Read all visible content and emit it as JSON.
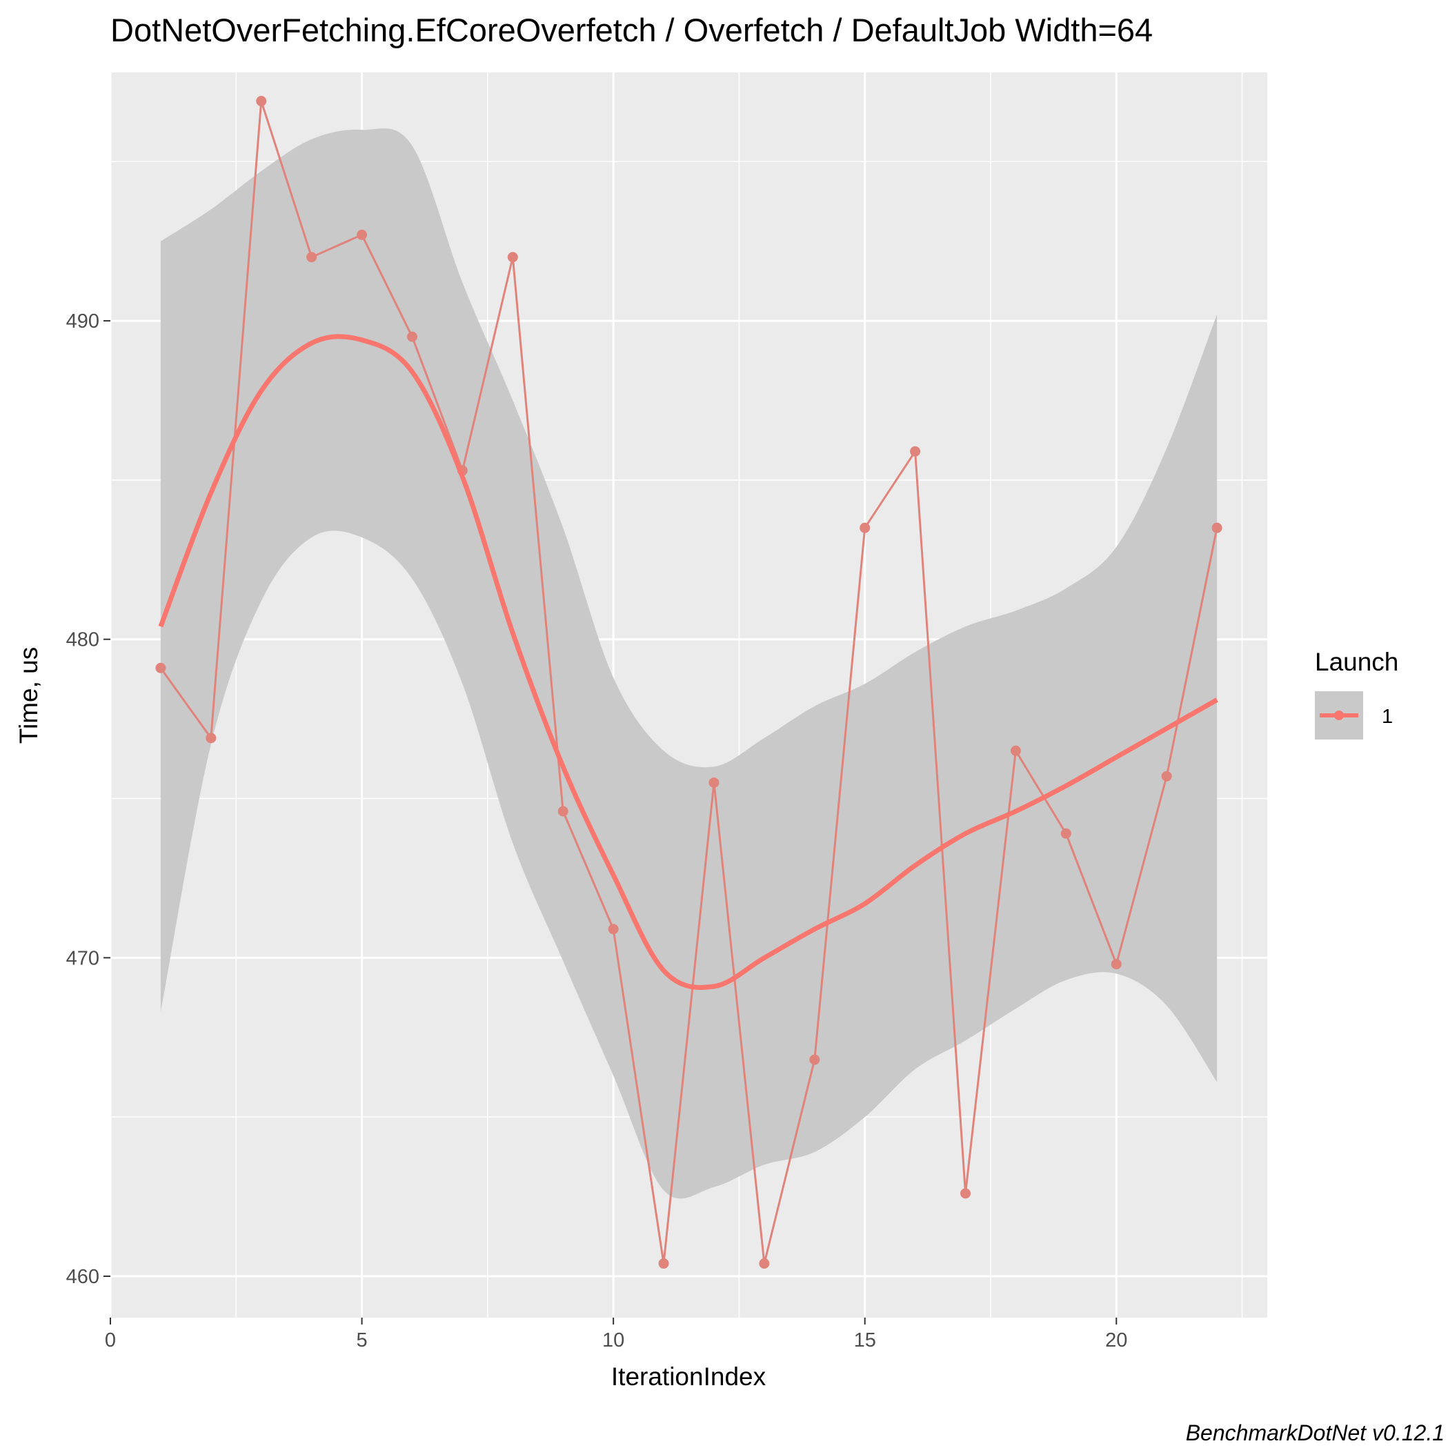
{
  "colors": {
    "panel": "#ebebeb",
    "grid_major": "#ffffff",
    "ribbon": "#c9c9c9",
    "series": "#f8766d",
    "series_line": "#e0837b",
    "axis_text": "#4d4d4d"
  },
  "chart_data": {
    "type": "line",
    "title": "DotNetOverFetching.EfCoreOverfetch / Overfetch / DefaultJob Width=64",
    "xlabel": "IterationIndex",
    "ylabel": "Time, us",
    "caption": "BenchmarkDotNet v0.12.1",
    "xlim": [
      0,
      23
    ],
    "ylim": [
      458.7,
      497.8
    ],
    "xticks": [
      0,
      5,
      10,
      15,
      20
    ],
    "xtick_labels": [
      "0",
      "5",
      "10",
      "15",
      "20"
    ],
    "yticks": [
      460,
      470,
      480,
      490
    ],
    "ytick_labels": [
      "460",
      "470",
      "480",
      "490"
    ],
    "grid": true,
    "legend": {
      "title": "Launch",
      "position": "right",
      "entries": [
        "1"
      ]
    },
    "series": [
      {
        "name": "1",
        "x": [
          1,
          2,
          3,
          4,
          5,
          6,
          7,
          8,
          9,
          10,
          11,
          12,
          13,
          14,
          15,
          16,
          17,
          18,
          19,
          20,
          21,
          22
        ],
        "values": [
          479.1,
          476.9,
          496.9,
          492.0,
          492.7,
          489.5,
          485.3,
          492.0,
          474.6,
          470.9,
          460.4,
          475.5,
          460.4,
          466.8,
          483.5,
          485.9,
          462.6,
          476.5,
          473.9,
          469.8,
          475.7,
          483.5
        ]
      }
    ],
    "smooth": {
      "x": [
        1,
        2,
        3,
        4,
        5,
        6,
        7,
        8,
        9,
        10,
        11,
        12,
        13,
        14,
        15,
        16,
        17,
        18,
        19,
        20,
        21,
        22
      ],
      "fit": [
        480.4,
        484.6,
        487.8,
        489.3,
        489.4,
        488.4,
        485.1,
        480.2,
        476.0,
        472.6,
        469.6,
        469.1,
        470.0,
        470.9,
        471.7,
        472.9,
        473.9,
        474.6,
        475.4,
        476.3,
        477.2,
        478.1
      ],
      "lower": [
        468.3,
        476.7,
        481.2,
        483.2,
        483.2,
        481.9,
        478.6,
        473.6,
        469.9,
        466.3,
        462.7,
        462.8,
        463.5,
        463.9,
        465.0,
        466.5,
        467.4,
        468.4,
        469.3,
        469.5,
        468.5,
        466.1
      ],
      "upper": [
        492.5,
        493.5,
        494.7,
        495.7,
        496.0,
        495.5,
        491.2,
        487.5,
        483.5,
        478.8,
        476.5,
        476.0,
        476.9,
        477.9,
        478.6,
        479.6,
        480.4,
        480.9,
        481.6,
        482.9,
        486.0,
        490.2
      ]
    }
  }
}
